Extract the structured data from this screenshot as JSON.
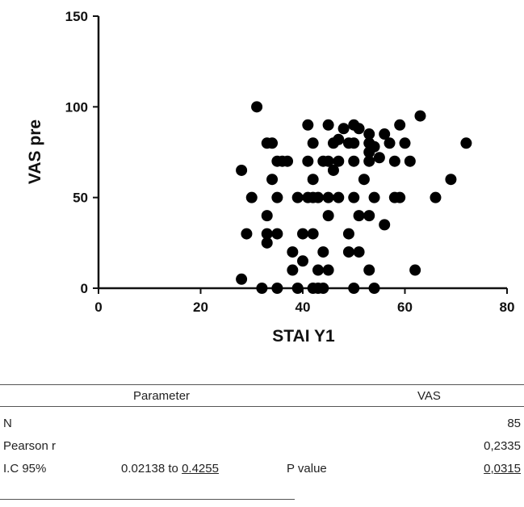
{
  "chart_data": {
    "type": "scatter",
    "xlabel": "STAI Y1",
    "ylabel": "VAS pre",
    "xlim": [
      0,
      80
    ],
    "ylim": [
      0,
      150
    ],
    "x_ticks": [
      "0",
      "20",
      "40",
      "60",
      "80"
    ],
    "y_ticks": [
      "0",
      "50",
      "100",
      "150"
    ],
    "grid": false,
    "legend": "none",
    "marker_color": "#000000",
    "points": [
      {
        "x": 31,
        "y": 100
      },
      {
        "x": 33,
        "y": 80
      },
      {
        "x": 34,
        "y": 80
      },
      {
        "x": 41,
        "y": 90
      },
      {
        "x": 45,
        "y": 90
      },
      {
        "x": 48,
        "y": 88
      },
      {
        "x": 50,
        "y": 90
      },
      {
        "x": 51,
        "y": 88
      },
      {
        "x": 53,
        "y": 85
      },
      {
        "x": 56,
        "y": 85
      },
      {
        "x": 59,
        "y": 90
      },
      {
        "x": 63,
        "y": 95
      },
      {
        "x": 72,
        "y": 80
      },
      {
        "x": 42,
        "y": 80
      },
      {
        "x": 46,
        "y": 80
      },
      {
        "x": 47,
        "y": 82
      },
      {
        "x": 49,
        "y": 80
      },
      {
        "x": 50,
        "y": 80
      },
      {
        "x": 53,
        "y": 80
      },
      {
        "x": 54,
        "y": 78
      },
      {
        "x": 57,
        "y": 80
      },
      {
        "x": 60,
        "y": 80
      },
      {
        "x": 28,
        "y": 65
      },
      {
        "x": 35,
        "y": 70
      },
      {
        "x": 36,
        "y": 70
      },
      {
        "x": 37,
        "y": 70
      },
      {
        "x": 41,
        "y": 70
      },
      {
        "x": 44,
        "y": 70
      },
      {
        "x": 45,
        "y": 70
      },
      {
        "x": 47,
        "y": 70
      },
      {
        "x": 50,
        "y": 70
      },
      {
        "x": 53,
        "y": 70
      },
      {
        "x": 55,
        "y": 72
      },
      {
        "x": 58,
        "y": 70
      },
      {
        "x": 61,
        "y": 70
      },
      {
        "x": 46,
        "y": 65
      },
      {
        "x": 53,
        "y": 75
      },
      {
        "x": 34,
        "y": 60
      },
      {
        "x": 42,
        "y": 60
      },
      {
        "x": 52,
        "y": 60
      },
      {
        "x": 69,
        "y": 60
      },
      {
        "x": 30,
        "y": 50
      },
      {
        "x": 35,
        "y": 50
      },
      {
        "x": 39,
        "y": 50
      },
      {
        "x": 41,
        "y": 50
      },
      {
        "x": 42,
        "y": 50
      },
      {
        "x": 43,
        "y": 50
      },
      {
        "x": 45,
        "y": 50
      },
      {
        "x": 47,
        "y": 50
      },
      {
        "x": 50,
        "y": 50
      },
      {
        "x": 54,
        "y": 50
      },
      {
        "x": 58,
        "y": 50
      },
      {
        "x": 59,
        "y": 50
      },
      {
        "x": 66,
        "y": 50
      },
      {
        "x": 33,
        "y": 40
      },
      {
        "x": 45,
        "y": 40
      },
      {
        "x": 51,
        "y": 40
      },
      {
        "x": 53,
        "y": 40
      },
      {
        "x": 56,
        "y": 35
      },
      {
        "x": 29,
        "y": 30
      },
      {
        "x": 33,
        "y": 30
      },
      {
        "x": 35,
        "y": 30
      },
      {
        "x": 40,
        "y": 30
      },
      {
        "x": 42,
        "y": 30
      },
      {
        "x": 49,
        "y": 30
      },
      {
        "x": 33,
        "y": 25
      },
      {
        "x": 38,
        "y": 20
      },
      {
        "x": 44,
        "y": 20
      },
      {
        "x": 49,
        "y": 20
      },
      {
        "x": 51,
        "y": 20
      },
      {
        "x": 40,
        "y": 15
      },
      {
        "x": 28,
        "y": 5
      },
      {
        "x": 38,
        "y": 10
      },
      {
        "x": 43,
        "y": 10
      },
      {
        "x": 45,
        "y": 10
      },
      {
        "x": 53,
        "y": 10
      },
      {
        "x": 62,
        "y": 10
      },
      {
        "x": 32,
        "y": 0
      },
      {
        "x": 35,
        "y": 0
      },
      {
        "x": 39,
        "y": 0
      },
      {
        "x": 42,
        "y": 0
      },
      {
        "x": 43,
        "y": 0
      },
      {
        "x": 44,
        "y": 0
      },
      {
        "x": 50,
        "y": 0
      },
      {
        "x": 54,
        "y": 0
      }
    ]
  },
  "stats_table": {
    "headers": {
      "parameter": "Parameter",
      "value": "VAS"
    },
    "n": {
      "label": "N",
      "value": "85"
    },
    "pearson": {
      "label": "Pearson r",
      "value": "0,2335"
    },
    "ci": {
      "label": "I.C 95%",
      "range_prefix": "0.02138 to ",
      "range_upper": "0.4255",
      "p_label": "P value",
      "p_value": "0,0315"
    }
  }
}
